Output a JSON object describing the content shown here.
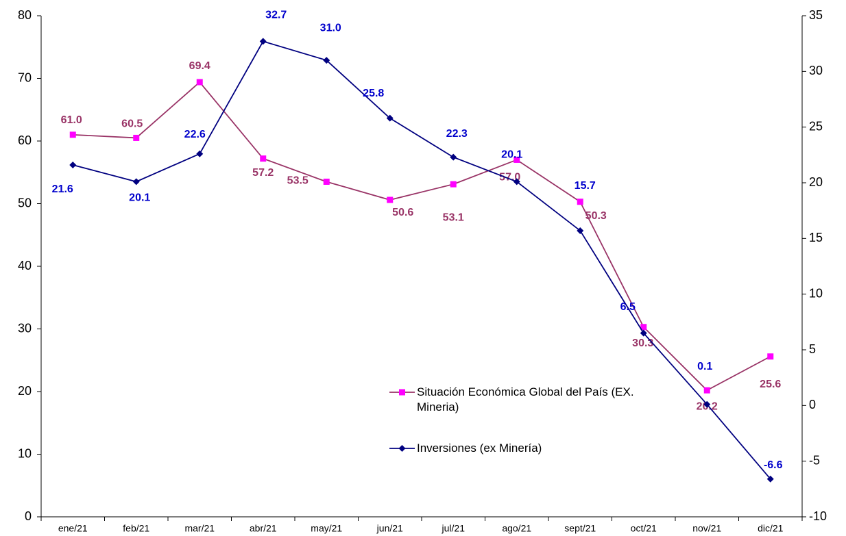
{
  "chart_data": {
    "type": "line",
    "categories": [
      "ene/21",
      "feb/21",
      "mar/21",
      "abr/21",
      "may/21",
      "jun/21",
      "jul/21",
      "ago/21",
      "sept/21",
      "oct/21",
      "nov/21",
      "dic/21"
    ],
    "series": [
      {
        "name": "Situación Económica Global del País (EX. Mineria)",
        "color": "#993366",
        "marker_color": "#ff00ff",
        "label_color": "#993366",
        "marker": "square",
        "values": [
          61.0,
          60.5,
          69.4,
          57.2,
          53.5,
          50.6,
          53.1,
          57.0,
          50.3,
          30.3,
          20.2,
          25.6
        ],
        "value_labels": [
          "61.0",
          "60.5",
          "69.4",
          "57.2",
          "53.5",
          "50.6",
          "53.1",
          "57.0",
          "50.3",
          "30.3",
          "20.2",
          "25.6"
        ]
      },
      {
        "name": "Inversiones (ex Minería)",
        "color": "#000080",
        "marker_color": "#000080",
        "label_color": "#0000cc",
        "marker": "diamond",
        "axis": "y2",
        "values": [
          21.6,
          20.1,
          22.6,
          32.7,
          31.0,
          25.8,
          22.3,
          20.1,
          15.7,
          6.5,
          0.1,
          -6.6
        ],
        "value_labels": [
          "21.6",
          "20.1",
          "22.6",
          "32.7",
          "31.0",
          "25.8",
          "22.3",
          "20.1",
          "15.7",
          "6.5",
          "0.1",
          "-6.6"
        ]
      }
    ],
    "ylim": [
      0,
      80
    ],
    "yticks": [
      0,
      10,
      20,
      30,
      40,
      50,
      60,
      70,
      80
    ],
    "y2lim": [
      -10,
      35
    ],
    "y2ticks": [
      -10,
      -5,
      0,
      5,
      10,
      15,
      20,
      25,
      30,
      35
    ],
    "grid": false
  }
}
